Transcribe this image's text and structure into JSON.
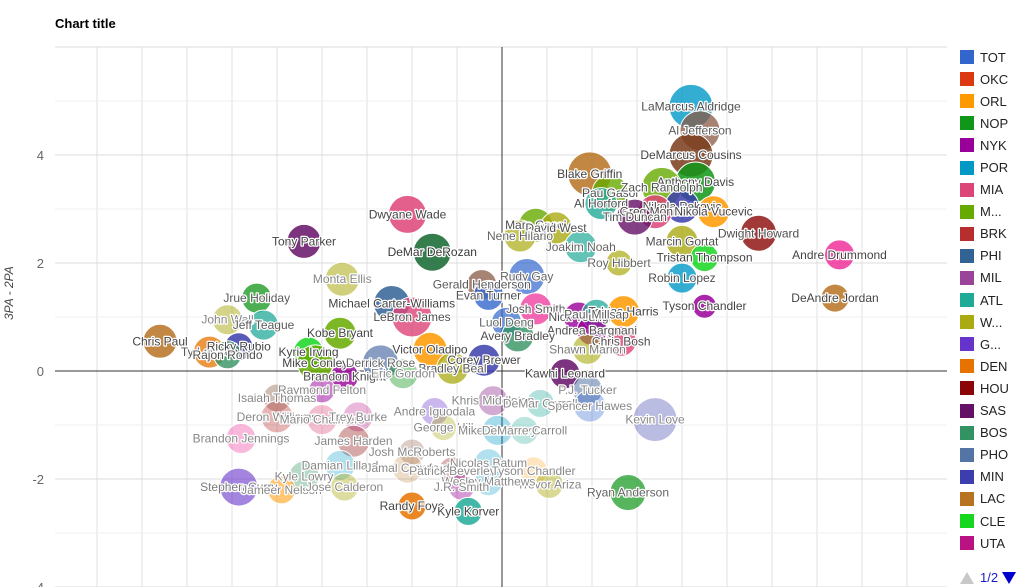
{
  "chart_data": {
    "type": "scatter",
    "subtype": "bubble",
    "title": "Chart title",
    "xlabel": "",
    "ylabel": "3PA - 2PA",
    "ylim": [
      -4,
      6
    ],
    "yticks": [
      4,
      2,
      0,
      -2,
      -4
    ],
    "xlim": [
      -10,
      10
    ],
    "xticks_shown": false,
    "grid": true,
    "legend_position": "right",
    "legend_page": "1/2",
    "legend": [
      {
        "team": "TOT",
        "color": "#3366cc"
      },
      {
        "team": "OKC",
        "color": "#dc3912"
      },
      {
        "team": "ORL",
        "color": "#ff9900"
      },
      {
        "team": "NOP",
        "color": "#109618"
      },
      {
        "team": "NYK",
        "color": "#990099"
      },
      {
        "team": "POR",
        "color": "#0099c6"
      },
      {
        "team": "MIA",
        "color": "#dd4477"
      },
      {
        "team": "M...",
        "color": "#66aa00"
      },
      {
        "team": "BRK",
        "color": "#b82e2e"
      },
      {
        "team": "PHI",
        "color": "#316395"
      },
      {
        "team": "MIL",
        "color": "#994499"
      },
      {
        "team": "ATL",
        "color": "#22aa99"
      },
      {
        "team": "W...",
        "color": "#aaaa11"
      },
      {
        "team": "G...",
        "color": "#6633cc"
      },
      {
        "team": "DEN",
        "color": "#e67300"
      },
      {
        "team": "HOU",
        "color": "#8b0707"
      },
      {
        "team": "SAS",
        "color": "#651067"
      },
      {
        "team": "BOS",
        "color": "#329262"
      },
      {
        "team": "PHO",
        "color": "#5574a6"
      },
      {
        "team": "MIN",
        "color": "#3b3eac"
      },
      {
        "team": "LAC",
        "color": "#b77322"
      },
      {
        "team": "CLE",
        "color": "#16d620"
      },
      {
        "team": "UTA",
        "color": "#b91383"
      }
    ],
    "points": [
      {
        "name": "LaMarcus Aldridge",
        "team": "POR",
        "x": 4.2,
        "y": 4.9,
        "r": 22,
        "color": "#0099c6",
        "alpha": 0.8
      },
      {
        "name": "Al Jefferson",
        "team": "CHA",
        "x": 4.4,
        "y": 4.45,
        "r": 20,
        "color": "#8a5a44",
        "alpha": 0.75
      },
      {
        "name": "DeMarcus Cousins",
        "team": "SAC",
        "x": 4.2,
        "y": 4.0,
        "r": 22,
        "color": "#7a3b1a",
        "alpha": 0.85
      },
      {
        "name": "Anthony Davis",
        "team": "NOP",
        "x": 4.3,
        "y": 3.5,
        "r": 20,
        "color": "#109618",
        "alpha": 0.85
      },
      {
        "name": "Blake Griffin",
        "team": "LAC",
        "x": 1.95,
        "y": 3.65,
        "r": 22,
        "color": "#b77322",
        "alpha": 0.85
      },
      {
        "name": "Pau Gasol",
        "team": "LAL",
        "x": 2.4,
        "y": 3.3,
        "r": 18,
        "color": "#66aa00",
        "alpha": 0.8
      },
      {
        "name": "Zach Randolph",
        "team": "MEM",
        "x": 3.55,
        "y": 3.4,
        "r": 20,
        "color": "#66aa00",
        "alpha": 0.8
      },
      {
        "name": "Al Horford",
        "team": "ATL",
        "x": 2.2,
        "y": 3.1,
        "r": 16,
        "color": "#22aa99",
        "alpha": 0.8
      },
      {
        "name": "Nikola Pekovic",
        "team": "MIN",
        "x": 4.0,
        "y": 3.05,
        "r": 17,
        "color": "#3b3eac",
        "alpha": 0.85
      },
      {
        "name": "Greg Monroe",
        "team": "DET",
        "x": 3.4,
        "y": 2.95,
        "r": 17,
        "color": "#dd4477",
        "alpha": 0.85
      },
      {
        "name": "Tim Duncan",
        "team": "SAS",
        "x": 2.95,
        "y": 2.85,
        "r": 18,
        "color": "#651067",
        "alpha": 0.8
      },
      {
        "name": "Nikola Vucevic",
        "team": "ORL",
        "x": 4.7,
        "y": 2.95,
        "r": 16,
        "color": "#ff9900",
        "alpha": 0.85
      },
      {
        "name": "Dwight Howard",
        "team": "HOU",
        "x": 5.7,
        "y": 2.55,
        "r": 18,
        "color": "#8b0707",
        "alpha": 0.8
      },
      {
        "name": "Dwyane Wade",
        "team": "MIA",
        "x": -2.1,
        "y": 2.9,
        "r": 19,
        "color": "#dd4477",
        "alpha": 0.85
      },
      {
        "name": "Tony Parker",
        "team": "SAS",
        "x": -4.4,
        "y": 2.4,
        "r": 17,
        "color": "#651067",
        "alpha": 0.85
      },
      {
        "name": "DeMar DeRozan",
        "team": "TOR",
        "x": -1.55,
        "y": 2.2,
        "r": 19,
        "color": "#1f6f3a",
        "alpha": 0.9
      },
      {
        "name": "Marc Gasol",
        "team": "MEM",
        "x": 0.75,
        "y": 2.7,
        "r": 17,
        "color": "#66aa00",
        "alpha": 0.8
      },
      {
        "name": "David West",
        "team": "IND",
        "x": 1.2,
        "y": 2.65,
        "r": 16,
        "color": "#aaaa11",
        "alpha": 0.8
      },
      {
        "name": "Nene Hilario",
        "team": "WAS",
        "x": 0.4,
        "y": 2.5,
        "r": 16,
        "color": "#aaaa11",
        "alpha": 0.7
      },
      {
        "name": "Joakim Noah",
        "team": "CHI",
        "x": 1.75,
        "y": 2.3,
        "r": 16,
        "color": "#22aa99",
        "alpha": 0.7
      },
      {
        "name": "Marcin Gortat",
        "team": "WAS",
        "x": 4.0,
        "y": 2.4,
        "r": 16,
        "color": "#aaaa11",
        "alpha": 0.8
      },
      {
        "name": "Roy Hibbert",
        "team": "IND",
        "x": 2.6,
        "y": 2.0,
        "r": 13,
        "color": "#aaaa11",
        "alpha": 0.7
      },
      {
        "name": "Tristan Thompson",
        "team": "CLE",
        "x": 4.5,
        "y": 2.1,
        "r": 14,
        "color": "#16d620",
        "alpha": 0.85
      },
      {
        "name": "Andre Drummond",
        "team": "DET",
        "x": 7.5,
        "y": 2.15,
        "r": 15,
        "color": "#ee3399",
        "alpha": 0.85
      },
      {
        "name": "Robin Lopez",
        "team": "POR",
        "x": 4.0,
        "y": 1.72,
        "r": 15,
        "color": "#0099c6",
        "alpha": 0.8
      },
      {
        "name": "DeAndre Jordan",
        "team": "LAC",
        "x": 7.4,
        "y": 1.35,
        "r": 14,
        "color": "#b77322",
        "alpha": 0.85
      },
      {
        "name": "Tyson Chandler",
        "team": "NYK",
        "x": 4.5,
        "y": 1.2,
        "r": 12,
        "color": "#990099",
        "alpha": 0.85
      },
      {
        "name": "Monta Ellis",
        "team": "DAL",
        "x": -3.55,
        "y": 1.7,
        "r": 17,
        "color": "#aaaa11",
        "alpha": 0.55
      },
      {
        "name": "Rudy Gay",
        "team": "SAC",
        "x": 0.55,
        "y": 1.75,
        "r": 18,
        "color": "#3366cc",
        "alpha": 0.7
      },
      {
        "name": "Gerald Henderson",
        "team": "CHA",
        "x": -0.45,
        "y": 1.6,
        "r": 15,
        "color": "#8a5a44",
        "alpha": 0.75
      },
      {
        "name": "Evan Turner",
        "team": "TOT",
        "x": -0.3,
        "y": 1.4,
        "r": 15,
        "color": "#3366cc",
        "alpha": 0.8
      },
      {
        "name": "Jrue Holiday",
        "team": "NOP",
        "x": -5.45,
        "y": 1.35,
        "r": 15,
        "color": "#109618",
        "alpha": 0.75
      },
      {
        "name": "Michael Carter-Williams",
        "team": "PHI",
        "x": -2.45,
        "y": 1.25,
        "r": 18,
        "color": "#316395",
        "alpha": 0.85
      },
      {
        "name": "LeBron James",
        "team": "MIA",
        "x": -2.0,
        "y": 1.0,
        "r": 20,
        "color": "#dd4477",
        "alpha": 0.8
      },
      {
        "name": "Josh Smith",
        "team": "DET",
        "x": 0.75,
        "y": 1.15,
        "r": 16,
        "color": "#ee3399",
        "alpha": 0.75
      },
      {
        "name": "Tobias Harris",
        "team": "ORL",
        "x": 2.7,
        "y": 1.1,
        "r": 16,
        "color": "#ff9900",
        "alpha": 0.85
      },
      {
        "name": "Nick Young",
        "team": "LAL",
        "x": 1.7,
        "y": 1.0,
        "r": 15,
        "color": "#990099",
        "alpha": 0.8
      },
      {
        "name": "Paul Millsap",
        "team": "ATL",
        "x": 2.1,
        "y": 1.05,
        "r": 15,
        "color": "#22aa99",
        "alpha": 0.75
      },
      {
        "name": "John Wall",
        "team": "WAS",
        "x": -6.1,
        "y": 0.95,
        "r": 15,
        "color": "#aaaa11",
        "alpha": 0.5
      },
      {
        "name": "Jeff Teague",
        "team": "ATL",
        "x": -5.3,
        "y": 0.85,
        "r": 15,
        "color": "#22aa99",
        "alpha": 0.75
      },
      {
        "name": "Luol Deng",
        "team": "TOT",
        "x": 0.1,
        "y": 0.9,
        "r": 15,
        "color": "#3366cc",
        "alpha": 0.7
      },
      {
        "name": "Andrea Bargnani",
        "team": "NYK",
        "x": 2.0,
        "y": 0.75,
        "r": 15,
        "color": "#990099",
        "alpha": 0.8
      },
      {
        "name": "Chris Bosh",
        "team": "MIA",
        "x": 2.65,
        "y": 0.55,
        "r": 15,
        "color": "#dd4477",
        "alpha": 0.8
      },
      {
        "name": "Avery Bradley",
        "team": "BOS",
        "x": 0.35,
        "y": 0.65,
        "r": 16,
        "color": "#329262",
        "alpha": 0.8
      },
      {
        "name": "Shawn Marion",
        "team": "DAL",
        "x": 1.9,
        "y": 0.4,
        "r": 15,
        "color": "#aaaa11",
        "alpha": 0.6
      },
      {
        "name": "Kobe Bryant",
        "team": "LAL",
        "x": -3.6,
        "y": 0.7,
        "r": 16,
        "color": "#66aa00",
        "alpha": 0.85
      },
      {
        "name": "Chris Paul",
        "team": "LAC",
        "x": -7.6,
        "y": 0.55,
        "r": 17,
        "color": "#b77322",
        "alpha": 0.85
      },
      {
        "name": "Ty Lawson",
        "team": "DEN",
        "x": -6.5,
        "y": 0.35,
        "r": 16,
        "color": "#e67300",
        "alpha": 0.75
      },
      {
        "name": "Ricky Rubio",
        "team": "MIN",
        "x": -5.85,
        "y": 0.45,
        "r": 14,
        "color": "#3b3eac",
        "alpha": 0.85
      },
      {
        "name": "Rajon Rondo",
        "team": "BOS",
        "x": -6.1,
        "y": 0.3,
        "r": 14,
        "color": "#329262",
        "alpha": 0.8
      },
      {
        "name": "Kyrie Irving",
        "team": "CLE",
        "x": -4.3,
        "y": 0.35,
        "r": 15,
        "color": "#16d620",
        "alpha": 0.85
      },
      {
        "name": "Mike Conley",
        "team": "MEM",
        "x": -4.15,
        "y": 0.15,
        "r": 18,
        "color": "#66aa00",
        "alpha": 0.85
      },
      {
        "name": "Derrick Rose",
        "team": "CHI",
        "x": -2.7,
        "y": 0.15,
        "r": 18,
        "color": "#5574a6",
        "alpha": 0.7
      },
      {
        "name": "Victor Oladipo",
        "team": "ORL",
        "x": -1.6,
        "y": 0.4,
        "r": 17,
        "color": "#ff9900",
        "alpha": 0.85
      },
      {
        "name": "Corey Brewer",
        "team": "MIN",
        "x": -0.4,
        "y": 0.2,
        "r": 16,
        "color": "#3b3eac",
        "alpha": 0.85
      },
      {
        "name": "Bradley Beal",
        "team": "WAS",
        "x": -1.1,
        "y": 0.05,
        "r": 16,
        "color": "#aaaa11",
        "alpha": 0.75
      },
      {
        "name": "Brandon Knight",
        "team": "MIL",
        "x": -3.5,
        "y": -0.1,
        "r": 14,
        "color": "#990099",
        "alpha": 0.8
      },
      {
        "name": "Eric Gordon",
        "team": "NOP",
        "x": -2.2,
        "y": -0.05,
        "r": 15,
        "color": "#109618",
        "alpha": 0.4
      },
      {
        "name": "Kawhi Leonard",
        "team": "SAS",
        "x": 1.4,
        "y": -0.05,
        "r": 15,
        "color": "#651067",
        "alpha": 0.85
      },
      {
        "name": "Raymond Felton",
        "team": "NYK",
        "x": -4.0,
        "y": -0.35,
        "r": 13,
        "color": "#990099",
        "alpha": 0.5
      },
      {
        "name": "Isaiah Thomas",
        "team": "SAC",
        "x": -5.0,
        "y": -0.5,
        "r": 14,
        "color": "#8a5a44",
        "alpha": 0.4
      },
      {
        "name": "P.J. Tucker",
        "team": "PHO",
        "x": 1.9,
        "y": -0.35,
        "r": 15,
        "color": "#5574a6",
        "alpha": 0.55
      },
      {
        "name": "Khris Middleton",
        "team": "MIL",
        "x": -0.2,
        "y": -0.55,
        "r": 15,
        "color": "#994499",
        "alpha": 0.45
      },
      {
        "name": "DeMar Carroll",
        "team": "ATL",
        "x": 0.85,
        "y": -0.6,
        "r": 14,
        "color": "#22aa99",
        "alpha": 0.35
      },
      {
        "name": "Spencer Hawes",
        "team": "TOT",
        "x": 1.95,
        "y": -0.65,
        "r": 16,
        "color": "#3366cc",
        "alpha": 0.35
      },
      {
        "name": "Kevin Love",
        "team": "MIN",
        "x": 3.4,
        "y": -0.9,
        "r": 22,
        "color": "#3b3eac",
        "alpha": 0.35
      },
      {
        "name": "Andre Iguodala",
        "team": "GSW",
        "x": -1.5,
        "y": -0.75,
        "r": 14,
        "color": "#6633cc",
        "alpha": 0.35
      },
      {
        "name": "Deron Williams",
        "team": "BRK",
        "x": -5.0,
        "y": -0.85,
        "r": 16,
        "color": "#b82e2e",
        "alpha": 0.35
      },
      {
        "name": "Mario Chalmers",
        "team": "MIA",
        "x": -4.0,
        "y": -0.9,
        "r": 15,
        "color": "#dd4477",
        "alpha": 0.35
      },
      {
        "name": "Trey Burke",
        "team": "UTA",
        "x": -3.2,
        "y": -0.85,
        "r": 15,
        "color": "#b91383",
        "alpha": 0.3
      },
      {
        "name": "George Hill",
        "team": "IND",
        "x": -1.3,
        "y": -1.05,
        "r": 13,
        "color": "#aaaa11",
        "alpha": 0.35
      },
      {
        "name": "Mike Dunleavy",
        "team": "CHI",
        "x": -0.1,
        "y": -1.1,
        "r": 15,
        "color": "#0099c6",
        "alpha": 0.35
      },
      {
        "name": "DeMarre Carroll",
        "team": "ATL",
        "x": 0.5,
        "y": -1.1,
        "r": 14,
        "color": "#22aa99",
        "alpha": 0.3
      },
      {
        "name": "Brandon Jennings",
        "team": "DET",
        "x": -5.8,
        "y": -1.25,
        "r": 15,
        "color": "#ee3399",
        "alpha": 0.35
      },
      {
        "name": "James Harden",
        "team": "HOU",
        "x": -3.3,
        "y": -1.3,
        "r": 16,
        "color": "#8b0707",
        "alpha": 0.35
      },
      {
        "name": "Josh McRoberts",
        "team": "CHA",
        "x": -2.0,
        "y": -1.5,
        "r": 13,
        "color": "#8a5a44",
        "alpha": 0.3
      },
      {
        "name": "Nicolas Batum",
        "team": "POR",
        "x": -0.3,
        "y": -1.7,
        "r": 14,
        "color": "#0099c6",
        "alpha": 0.3
      },
      {
        "name": "Damian Lillard",
        "team": "POR",
        "x": -3.6,
        "y": -1.75,
        "r": 15,
        "color": "#0099c6",
        "alpha": 0.3
      },
      {
        "name": "Jamal Crawford",
        "team": "LAC",
        "x": -2.1,
        "y": -1.8,
        "r": 15,
        "color": "#b77322",
        "alpha": 0.25
      },
      {
        "name": "Patrick Beverley",
        "team": "HOU",
        "x": -1.1,
        "y": -1.85,
        "r": 14,
        "color": "#8b0707",
        "alpha": 0.3
      },
      {
        "name": "Tyson Chandler",
        "team": "NYK",
        "x": 0.7,
        "y": -1.85,
        "r": 14,
        "color": "#ff9900",
        "alpha": 0.25
      },
      {
        "name": "Kyle Lowry",
        "team": "TOR",
        "x": -4.4,
        "y": -1.95,
        "r": 15,
        "color": "#329262",
        "alpha": 0.35
      },
      {
        "name": "Trevor Ariza",
        "team": "WAS",
        "x": 1.05,
        "y": -2.1,
        "r": 14,
        "color": "#aaaa11",
        "alpha": 0.45
      },
      {
        "name": "Wesley Matthews",
        "team": "POR",
        "x": -0.3,
        "y": -2.05,
        "r": 14,
        "color": "#0099c6",
        "alpha": 0.3
      },
      {
        "name": "J.R. Smith",
        "team": "NYK",
        "x": -0.9,
        "y": -2.15,
        "r": 13,
        "color": "#990099",
        "alpha": 0.4
      },
      {
        "name": "Stephen Curry",
        "team": "GSW",
        "x": -5.85,
        "y": -2.15,
        "r": 19,
        "color": "#6633cc",
        "alpha": 0.6
      },
      {
        "name": "Jameer Nelson",
        "team": "ORL",
        "x": -4.9,
        "y": -2.2,
        "r": 14,
        "color": "#ff9900",
        "alpha": 0.55
      },
      {
        "name": "Jose Calderon",
        "team": "DAL",
        "x": -3.5,
        "y": -2.15,
        "r": 14,
        "color": "#aaaa11",
        "alpha": 0.4
      },
      {
        "name": "Ryan Anderson",
        "team": "NOP",
        "x": 2.8,
        "y": -2.25,
        "r": 18,
        "color": "#109618",
        "alpha": 0.7
      },
      {
        "name": "Randy Foye",
        "team": "DEN",
        "x": -2.0,
        "y": -2.5,
        "r": 14,
        "color": "#e67300",
        "alpha": 0.85
      },
      {
        "name": "Kyle Korver",
        "team": "ATL",
        "x": -0.75,
        "y": -2.6,
        "r": 14,
        "color": "#22aa99",
        "alpha": 0.85
      }
    ]
  },
  "ui": {
    "title": "Chart title",
    "y_axis_title": "3PA - 2PA",
    "pager_text": "1/2"
  }
}
